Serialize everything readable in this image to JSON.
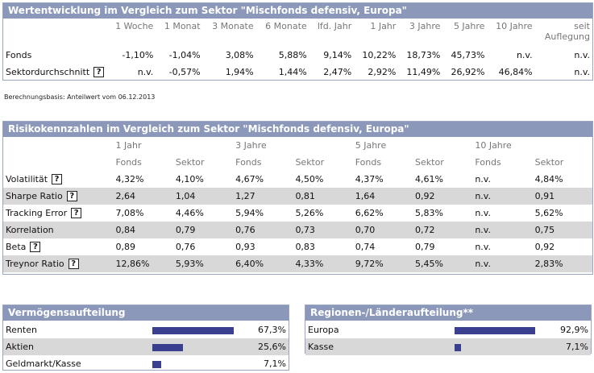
{
  "perf": {
    "title": "Wertentwicklung im Vergleich zum Sektor \"Mischfonds defensiv, Europa\"",
    "columns": [
      "1 Woche",
      "1 Monat",
      "3 Monate",
      "6 Monate",
      "lfd. Jahr",
      "1 Jahr",
      "3 Jahre",
      "5 Jahre",
      "10 Jahre",
      "seit"
    ],
    "col_last_line2": "Auflegung",
    "rows": [
      {
        "label": "Fonds",
        "values": [
          "-1,10%",
          "-1,04%",
          "3,08%",
          "5,88%",
          "9,14%",
          "10,22%",
          "18,73%",
          "45,73%",
          "n.v.",
          "n.v."
        ]
      },
      {
        "label": "Sektordurchschnitt",
        "values": [
          "n.v.",
          "-0,57%",
          "1,94%",
          "1,44%",
          "2,47%",
          "2,92%",
          "11,49%",
          "26,92%",
          "46,84%",
          "n.v."
        ]
      }
    ]
  },
  "basis_note": "Berechnungsbasis: Anteilwert vom 06.12.2013",
  "risk": {
    "title": "Risikokennzahlen im Vergleich zum Sektor \"Mischfonds defensiv, Europa\"",
    "periods": [
      "1 Jahr",
      "3 Jahre",
      "5 Jahre",
      "10 Jahre"
    ],
    "sub": [
      "Fonds",
      "Sektor"
    ],
    "rows": [
      {
        "label": "Volatilität",
        "help": true,
        "values": [
          "4,32%",
          "4,10%",
          "4,67%",
          "4,50%",
          "4,37%",
          "4,61%",
          "n.v.",
          "4,84%"
        ]
      },
      {
        "label": "Sharpe Ratio",
        "help": true,
        "values": [
          "2,64",
          "1,04",
          "1,27",
          "0,81",
          "1,64",
          "0,92",
          "n.v.",
          "0,91"
        ]
      },
      {
        "label": "Tracking Error",
        "help": true,
        "values": [
          "7,08%",
          "4,46%",
          "5,94%",
          "5,26%",
          "6,62%",
          "5,83%",
          "n.v.",
          "5,62%"
        ]
      },
      {
        "label": "Korrelation",
        "help": false,
        "values": [
          "0,84",
          "0,79",
          "0,76",
          "0,73",
          "0,70",
          "0,72",
          "n.v.",
          "0,75"
        ]
      },
      {
        "label": "Beta",
        "help": true,
        "values": [
          "0,89",
          "0,76",
          "0,93",
          "0,83",
          "0,74",
          "0,79",
          "n.v.",
          "0,92"
        ]
      },
      {
        "label": "Treynor Ratio",
        "help": true,
        "values": [
          "12,86%",
          "5,93%",
          "6,40%",
          "4,33%",
          "9,72%",
          "5,45%",
          "n.v.",
          "2,83%"
        ]
      }
    ]
  },
  "assets": {
    "title": "Vermögensaufteilung",
    "rows": [
      {
        "label": "Renten",
        "value": "67,3%",
        "share": 0.673
      },
      {
        "label": "Aktien",
        "value": "25,6%",
        "share": 0.256
      },
      {
        "label": "Geldmarkt/Kasse",
        "value": "7,1%",
        "share": 0.071
      }
    ]
  },
  "regions": {
    "title": "Regionen-/Länderaufteilung**",
    "rows": [
      {
        "label": "Europa",
        "value": "92,9%",
        "share": 0.929
      },
      {
        "label": "Kasse",
        "value": "7,1%",
        "share": 0.071
      }
    ]
  },
  "help_glyph": "?",
  "colors": {
    "header": "#8b98ba",
    "bar": "#3b3f8f",
    "shade": "#d8d8d8"
  }
}
